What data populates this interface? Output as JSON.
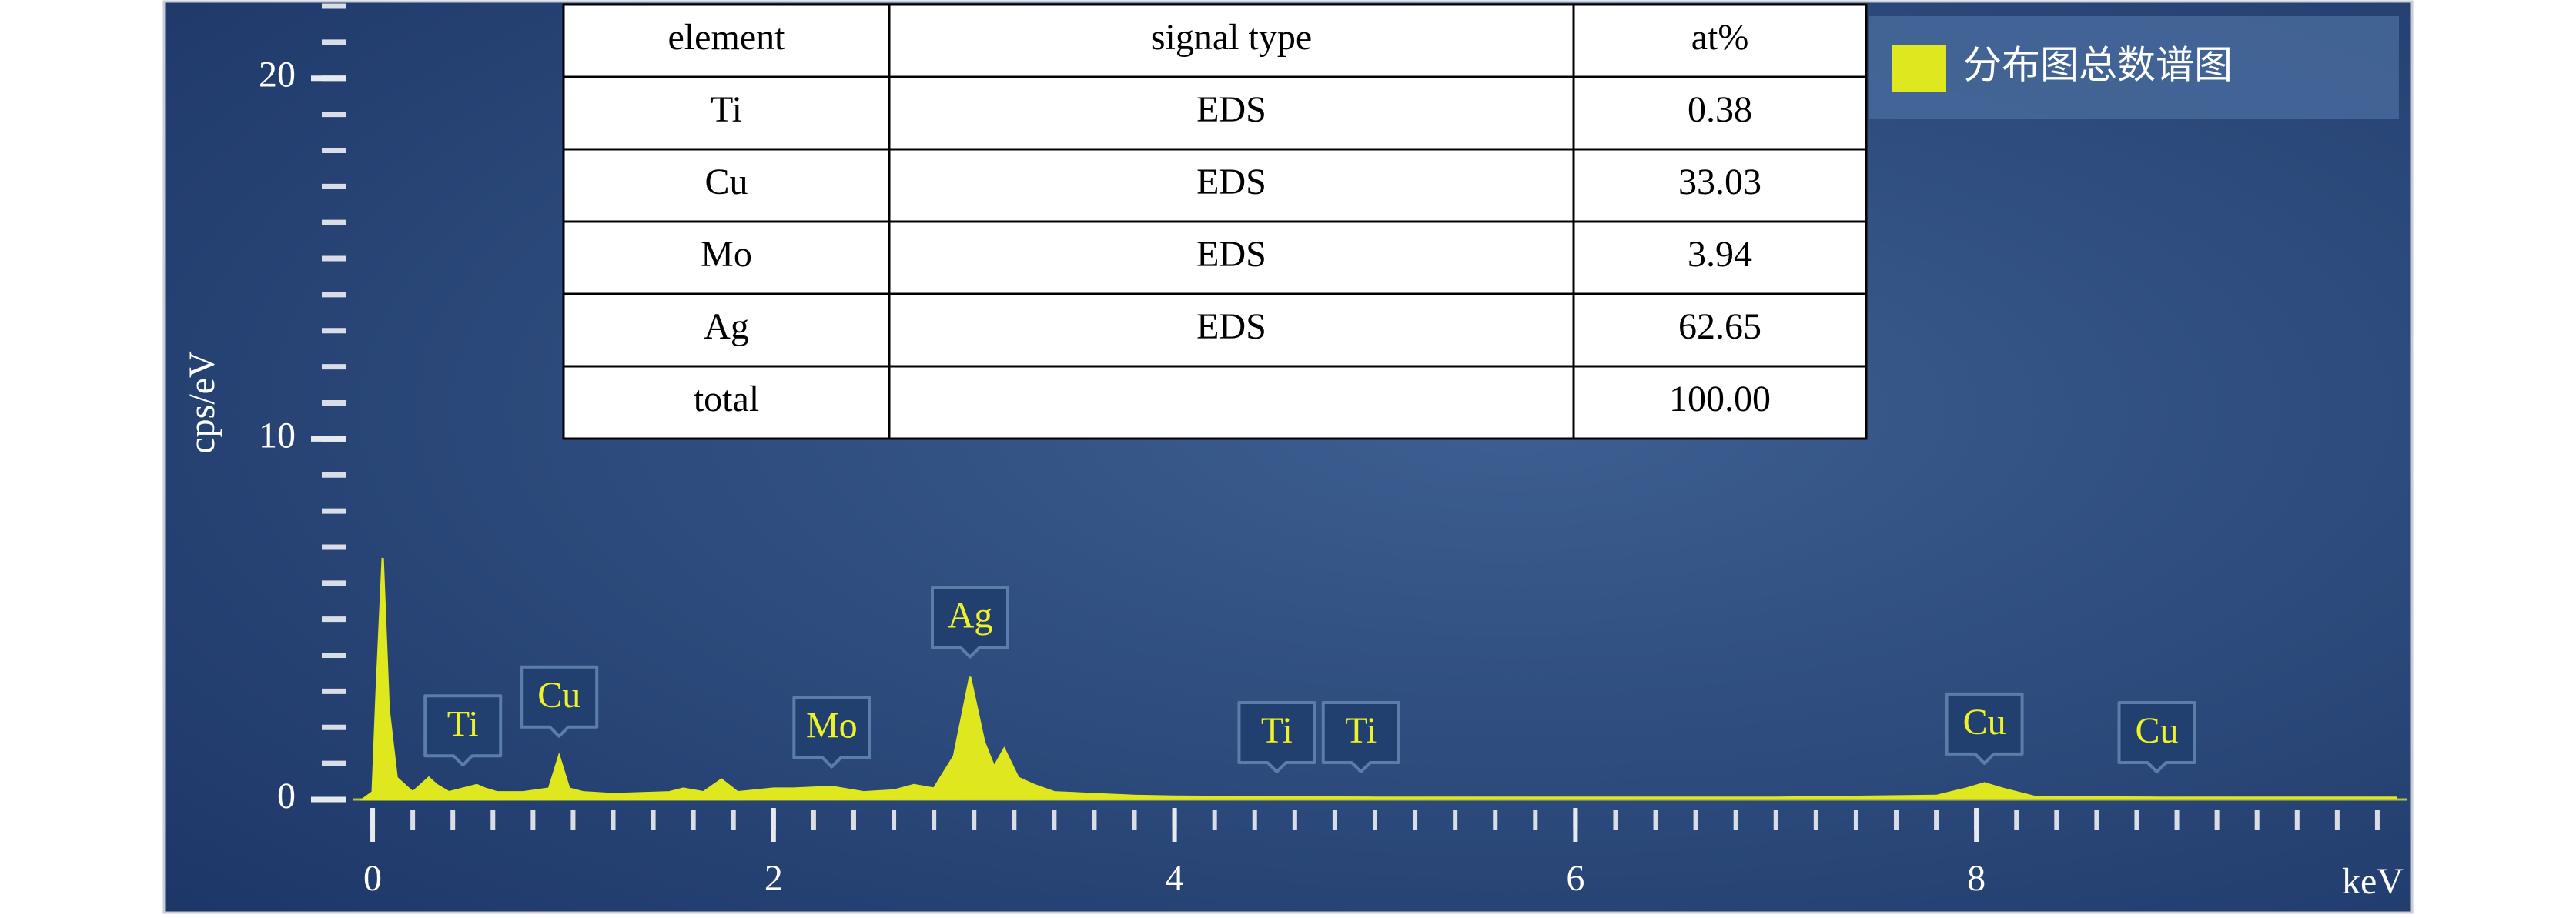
{
  "chart_data": {
    "type": "area",
    "x": [
      -0.05,
      0,
      0.02,
      0.05,
      0.08,
      0.12,
      0.2,
      0.28,
      0.32,
      0.38,
      0.45,
      0.52,
      0.56,
      0.62,
      0.75,
      0.88,
      0.93,
      0.98,
      1.05,
      1.2,
      1.48,
      1.55,
      1.65,
      1.74,
      1.82,
      2.0,
      2.1,
      2.29,
      2.45,
      2.6,
      2.7,
      2.8,
      2.9,
      2.98,
      3.05,
      3.1,
      3.15,
      3.22,
      3.3,
      3.4,
      3.6,
      3.8,
      4.0,
      4.5,
      5.0,
      6.0,
      7.0,
      7.8,
      7.95,
      8.04,
      8.13,
      8.3,
      8.9,
      10.1
    ],
    "series": [
      {
        "name": "分布图总数谱图",
        "color": "#dfe81e",
        "values": [
          0,
          0.2,
          3,
          6.7,
          2.5,
          0.6,
          0.2,
          0.6,
          0.4,
          0.2,
          0.3,
          0.4,
          0.3,
          0.2,
          0.2,
          0.3,
          1.2,
          0.3,
          0.2,
          0.15,
          0.2,
          0.3,
          0.2,
          0.55,
          0.2,
          0.3,
          0.3,
          0.35,
          0.2,
          0.25,
          0.4,
          0.3,
          1.2,
          3.4,
          1.6,
          0.9,
          1.4,
          0.6,
          0.4,
          0.2,
          0.15,
          0.1,
          0.08,
          0.06,
          0.05,
          0.05,
          0.05,
          0.1,
          0.3,
          0.45,
          0.3,
          0.06,
          0.05,
          0.05
        ]
      }
    ],
    "xlabel": "keV",
    "ylabel": "cps/eV",
    "xlim": [
      -0.1,
      10.15
    ],
    "xticks": [
      0,
      2,
      4,
      6,
      8
    ],
    "ylim": [
      0,
      22
    ],
    "yticks": [
      0,
      10,
      20
    ],
    "annotations": [
      {
        "text": "Ti",
        "x": 0.45
      },
      {
        "text": "Cu",
        "x": 0.93
      },
      {
        "text": "Mo",
        "x": 2.29
      },
      {
        "text": "Ag",
        "x": 2.98
      },
      {
        "text": "Ti",
        "x": 4.51
      },
      {
        "text": "Ti",
        "x": 4.93
      },
      {
        "text": "Cu",
        "x": 8.04
      },
      {
        "text": "Cu",
        "x": 8.9
      }
    ],
    "table": {
      "columns": [
        "element",
        "signal type",
        "at%"
      ],
      "rows": [
        [
          "Ti",
          "EDS",
          "0.38"
        ],
        [
          "Cu",
          "EDS",
          "33.03"
        ],
        [
          "Mo",
          "EDS",
          "3.94"
        ],
        [
          "Ag",
          "EDS",
          "62.65"
        ],
        [
          "total",
          null,
          "100.00"
        ]
      ]
    }
  }
}
